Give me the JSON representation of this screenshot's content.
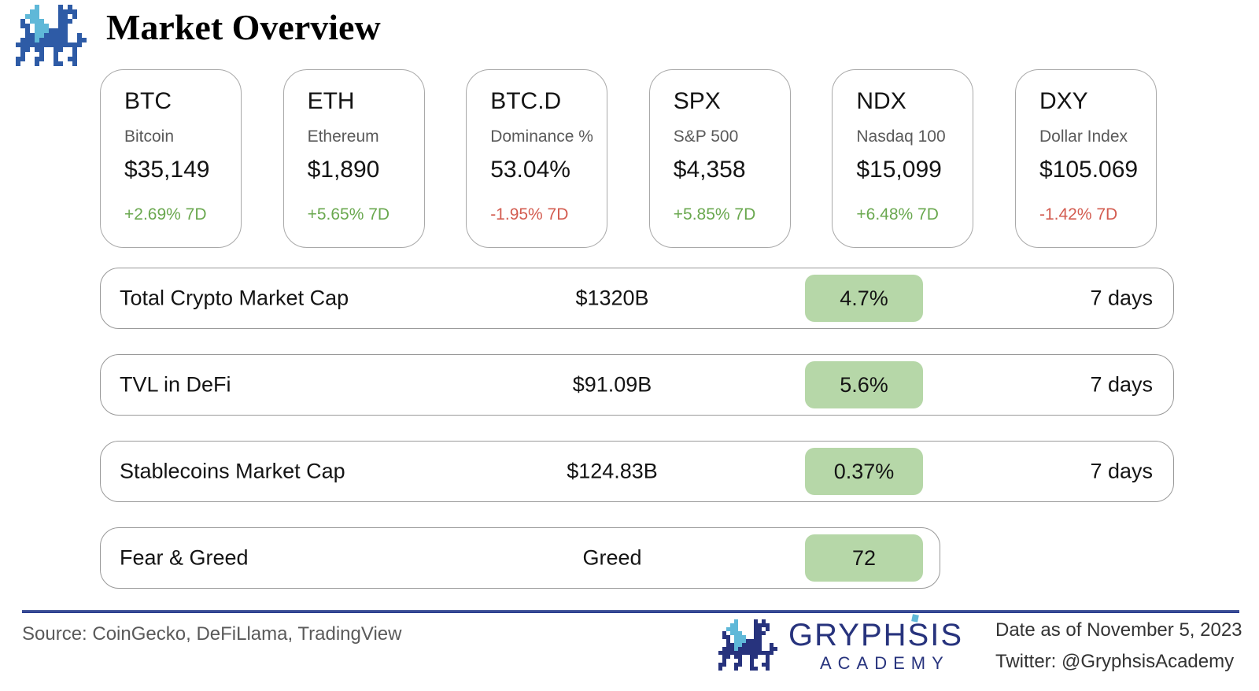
{
  "header": {
    "title": "Market Overview"
  },
  "cards": [
    {
      "ticker": "BTC",
      "name": "Bitcoin",
      "value": "$35,149",
      "change": "+2.69% 7D",
      "direction": "up"
    },
    {
      "ticker": "ETH",
      "name": "Ethereum",
      "value": "$1,890",
      "change": "+5.65% 7D",
      "direction": "up"
    },
    {
      "ticker": "BTC.D",
      "name": "Dominance %",
      "value": "53.04%",
      "change": "-1.95% 7D",
      "direction": "down"
    },
    {
      "ticker": "SPX",
      "name": "S&P 500",
      "value": "$4,358",
      "change": "+5.85% 7D",
      "direction": "up"
    },
    {
      "ticker": "NDX",
      "name": "Nasdaq 100",
      "value": "$15,099",
      "change": "+6.48% 7D",
      "direction": "up"
    },
    {
      "ticker": "DXY",
      "name": "Dollar Index",
      "value": "$105.069",
      "change": "-1.42% 7D",
      "direction": "down"
    }
  ],
  "metrics": [
    {
      "label": "Total Crypto Market Cap",
      "value": "$1320B",
      "badge": "4.7%",
      "period": "7 days"
    },
    {
      "label": "TVL in DeFi",
      "value": "$91.09B",
      "badge": "5.6%",
      "period": "7 days"
    },
    {
      "label": "Stablecoins Market Cap",
      "value": "$124.83B",
      "badge": "0.37%",
      "period": "7 days"
    },
    {
      "label": "Fear & Greed",
      "value": "Greed",
      "badge": "72",
      "period": ""
    }
  ],
  "footer": {
    "source": "Source: CoinGecko, DeFiLlama, TradingView",
    "brand_name": "GRYPHSIS",
    "brand_sub": "ACADEMY",
    "date": "Date as of November 5, 2023",
    "twitter": "Twitter: @GryphsisAcademy"
  },
  "colors": {
    "positive_green": "#6aa84f",
    "negative_red": "#d35c50",
    "badge_green_bg": "#b6d7a8",
    "brand_navy": "#27337d",
    "brand_accent_teal": "#5fb8d8",
    "divider_blue": "#22368c"
  }
}
